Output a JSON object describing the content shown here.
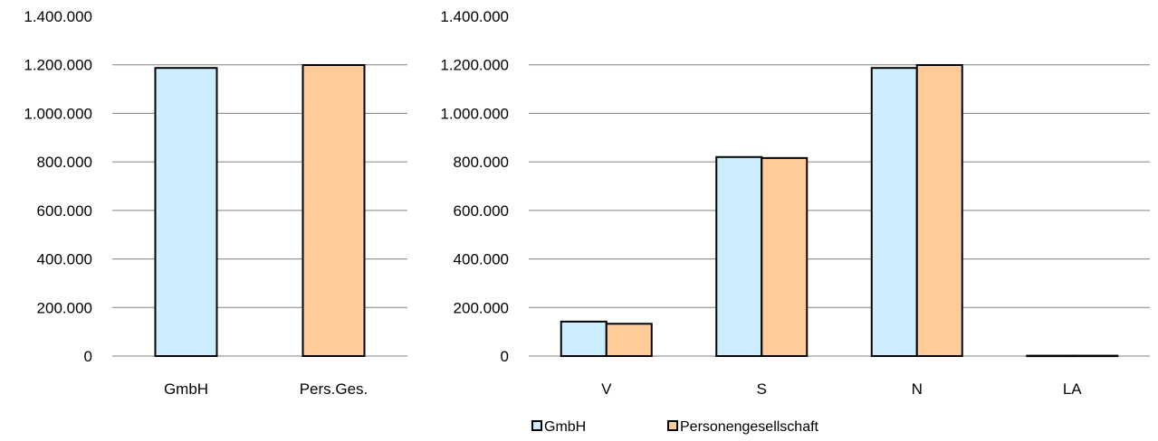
{
  "colors": {
    "gmbh": "#cceeff",
    "pers": "#ffcc99",
    "outline": "#000000",
    "grid": "#808080"
  },
  "chart_data": [
    {
      "type": "bar",
      "categories": [
        "GmbH",
        "Pers.Ges."
      ],
      "series": [
        {
          "values": [
            1187000,
            1199000
          ],
          "color": "#cceeff"
        }
      ],
      "point_colors": [
        "#cceeff",
        "#ffcc99"
      ],
      "ylim": [
        0,
        1400000
      ],
      "yticks": [
        0,
        200000,
        400000,
        600000,
        800000,
        1000000,
        1200000,
        1400000
      ],
      "ytick_labels": [
        "0",
        "200.000",
        "400.000",
        "600.000",
        "800.000",
        "1.000.000",
        "1.200.000",
        "1.400.000"
      ],
      "grid": true,
      "legend": "none"
    },
    {
      "type": "bar",
      "categories": [
        "V",
        "S",
        "N",
        "LA"
      ],
      "series": [
        {
          "name": "GmbH",
          "values": [
            142000,
            820000,
            1187000,
            1500
          ],
          "color": "#cceeff"
        },
        {
          "name": "Personengesellschaft",
          "values": [
            133000,
            816000,
            1199000,
            1500
          ],
          "color": "#ffcc99"
        }
      ],
      "ylim": [
        0,
        1400000
      ],
      "yticks": [
        0,
        200000,
        400000,
        600000,
        800000,
        1000000,
        1200000,
        1400000
      ],
      "ytick_labels": [
        "0",
        "200.000",
        "400.000",
        "600.000",
        "800.000",
        "1.000.000",
        "1.200.000",
        "1.400.000"
      ],
      "grid": true,
      "legend": "bottom"
    }
  ]
}
